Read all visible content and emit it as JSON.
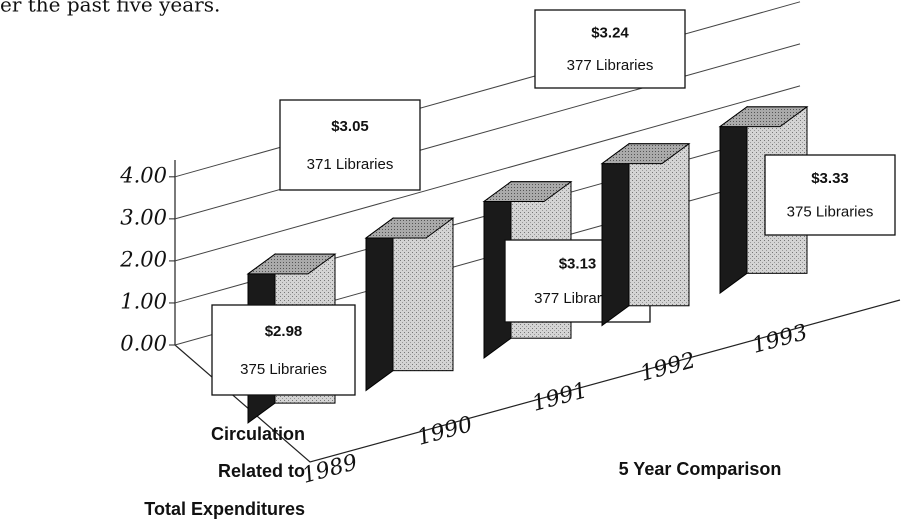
{
  "chart_data": {
    "type": "bar3d",
    "page_fragment": "er the past five years.",
    "title_lines": [
      "Circulation",
      "Related to",
      "Total Expenditures"
    ],
    "x_label": "5 Year Comparison",
    "categories": [
      "1989",
      "1990",
      "1991",
      "1992",
      "1993"
    ],
    "values": [
      2.98,
      3.05,
      3.13,
      3.24,
      3.33
    ],
    "value_labels": [
      "$2.98",
      "$3.05",
      "$3.13",
      "$3.24",
      "$3.33"
    ],
    "bar_notes": [
      "375 Libraries",
      "371 Libraries",
      "377 Libraries",
      "377 Libraries",
      "375 Libraries"
    ],
    "ylim": [
      0,
      4.4
    ],
    "yticks": [
      {
        "value": 0,
        "label": "0.00"
      },
      {
        "value": 1,
        "label": "1.00"
      },
      {
        "value": 2,
        "label": "2.00"
      },
      {
        "value": 3,
        "label": "3.00"
      },
      {
        "value": 4,
        "label": "4.00"
      }
    ],
    "grid": true
  }
}
